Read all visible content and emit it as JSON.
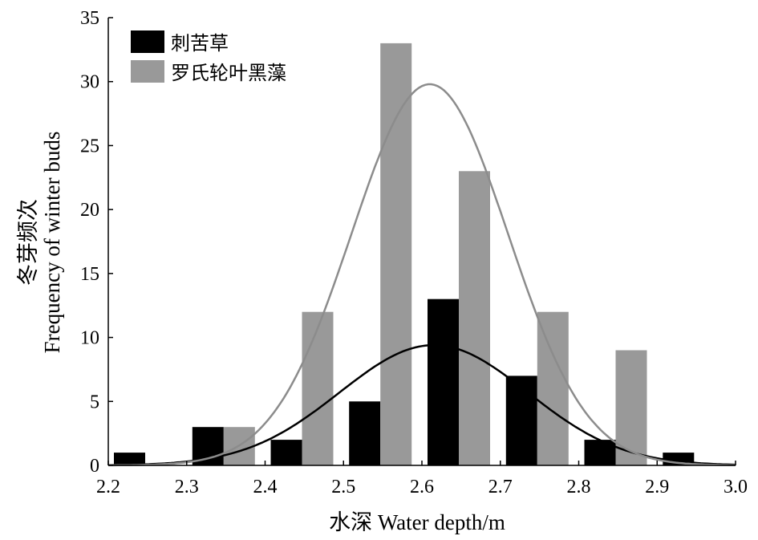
{
  "chart_data": {
    "type": "bar",
    "x": [
      2.25,
      2.35,
      2.45,
      2.55,
      2.65,
      2.75,
      2.85,
      2.95
    ],
    "series": [
      {
        "name": "刺苦草",
        "color": "#000000",
        "values": [
          1,
          3,
          2,
          5,
          13,
          7,
          2,
          1
        ],
        "fit": {
          "type": "normal",
          "mean": 2.615,
          "sd": 0.12,
          "peak": 9.4,
          "color": "#000000"
        }
      },
      {
        "name": "罗氏轮叶黑藻",
        "color": "#999999",
        "values": [
          0,
          3,
          12,
          33,
          23,
          12,
          9,
          0
        ],
        "fit": {
          "type": "normal",
          "mean": 2.61,
          "sd": 0.1,
          "peak": 29.8,
          "color": "#8c8c8c"
        }
      }
    ],
    "xlim": [
      2.2,
      3.0
    ],
    "ylim": [
      0,
      35
    ],
    "xticks": [
      "2.2",
      "2.3",
      "2.4",
      "2.5",
      "2.6",
      "2.7",
      "2.8",
      "2.9",
      "3.0"
    ],
    "yticks": [
      "0",
      "5",
      "10",
      "15",
      "20",
      "25",
      "30",
      "35"
    ],
    "xlabel": "水深 Water depth/m",
    "ylabel_line1": "冬芽频次",
    "ylabel_line2": "Frequency of winter buds",
    "grid": false,
    "legend_position": "top-left"
  }
}
